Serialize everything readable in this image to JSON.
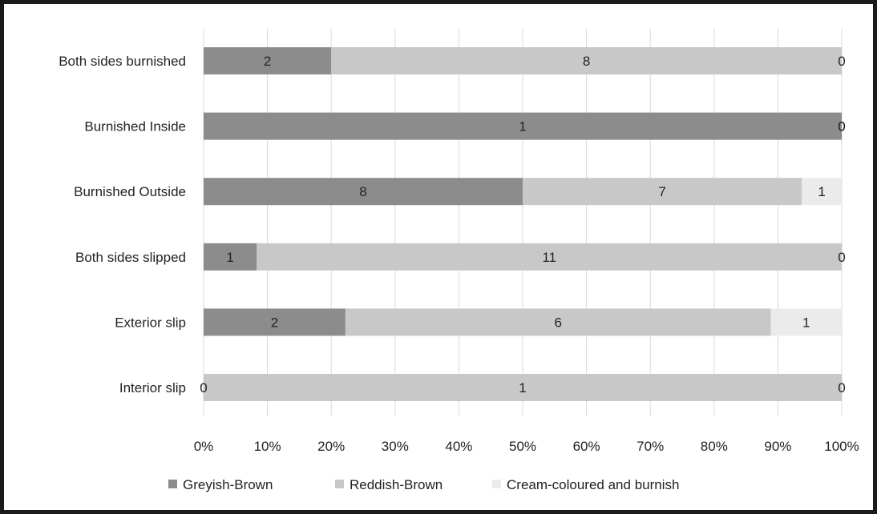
{
  "chart_data": {
    "type": "bar",
    "orientation": "horizontal",
    "stacked": "percent",
    "categories": [
      "Both sides burnished",
      "Burnished Inside",
      "Burnished Outside",
      "Both sides slipped",
      "Exterior slip",
      "Interior slip"
    ],
    "series": [
      {
        "name": "Greyish-Brown",
        "color": "#8c8c8c",
        "values": [
          2,
          1,
          8,
          1,
          2,
          0
        ]
      },
      {
        "name": "Reddish-Brown",
        "color": "#c8c8c8",
        "values": [
          8,
          0,
          7,
          11,
          6,
          1
        ]
      },
      {
        "name": "Cream-coloured and burnish",
        "color": "#ebebeb",
        "values": [
          0,
          0,
          1,
          0,
          1,
          0
        ]
      }
    ],
    "xlim": [
      0,
      100
    ],
    "xticks": [
      "0%",
      "10%",
      "20%",
      "30%",
      "40%",
      "50%",
      "60%",
      "70%",
      "80%",
      "90%",
      "100%"
    ],
    "grid": "vertical",
    "legend": "bottom"
  }
}
